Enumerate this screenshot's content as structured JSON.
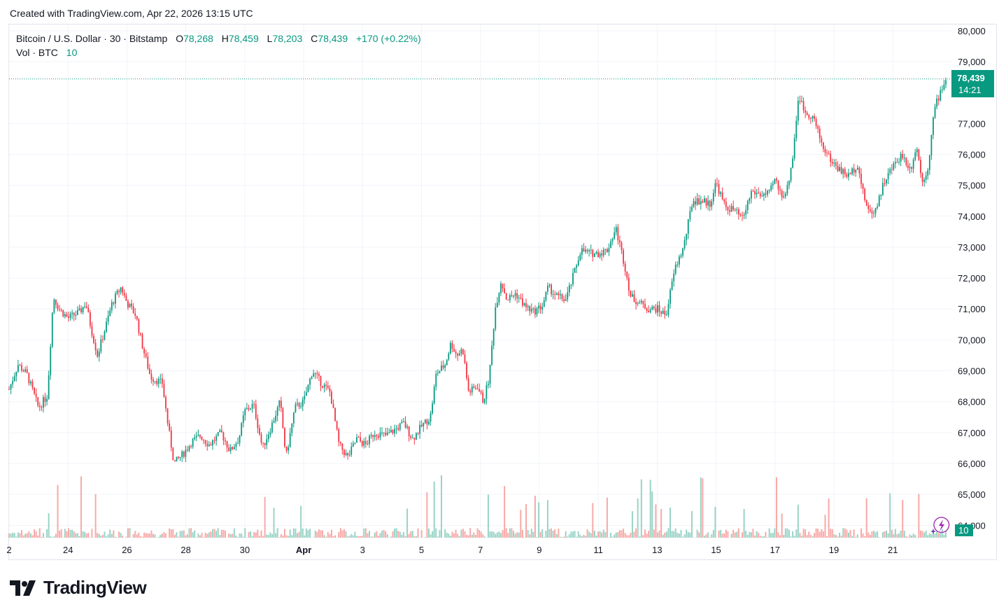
{
  "header": {
    "created_text": "Created with TradingView.com, Apr 22, 2026 13:15 UTC"
  },
  "legend": {
    "symbol": "Bitcoin / U.S. Dollar · 30 · Bitstamp",
    "o_label": "O",
    "o_value": "78,268",
    "h_label": "H",
    "h_value": "78,459",
    "l_label": "L",
    "l_value": "78,203",
    "c_label": "C",
    "c_value": "78,439",
    "change": "+170 (+0.22%)",
    "vol_label": "Vol · BTC",
    "vol_value": "10"
  },
  "price_badge": {
    "price": "78,439",
    "countdown": "14:21"
  },
  "volume_badge": {
    "value": "10"
  },
  "footer": {
    "logo_text": "TradingView"
  },
  "colors": {
    "up": "#089981",
    "down": "#f23645",
    "up_volume": "#9ad3c6",
    "down_volume": "#f7a9a7",
    "grid": "#f0f3fa",
    "axis_text": "#131722"
  },
  "chart_data": {
    "type": "candlestick",
    "title": "Bitcoin / U.S. Dollar · 30 · Bitstamp",
    "interval": "30",
    "y_ticks": [
      "80,000",
      "79,000",
      "77,000",
      "76,000",
      "75,000",
      "74,000",
      "73,000",
      "72,000",
      "71,000",
      "70,000",
      "69,000",
      "68,000",
      "67,000",
      "66,000",
      "65,000",
      "64,000"
    ],
    "ylim": [
      63600,
      80200
    ],
    "x_ticks": [
      {
        "label": "2",
        "day": 22
      },
      {
        "label": "24",
        "day": 24
      },
      {
        "label": "26",
        "day": 26
      },
      {
        "label": "28",
        "day": 28
      },
      {
        "label": "30",
        "day": 30
      },
      {
        "label": "Apr",
        "day": 32,
        "bold": true
      },
      {
        "label": "3",
        "day": 34
      },
      {
        "label": "5",
        "day": 36
      },
      {
        "label": "7",
        "day": 38
      },
      {
        "label": "9",
        "day": 40
      },
      {
        "label": "11",
        "day": 42
      },
      {
        "label": "13",
        "day": 44
      },
      {
        "label": "15",
        "day": 46
      },
      {
        "label": "17",
        "day": 48
      },
      {
        "label": "19",
        "day": 50
      },
      {
        "label": "21",
        "day": 52
      }
    ],
    "x_domain_days": [
      22,
      53.8
    ],
    "last_price": 78439,
    "price_path": [
      [
        22.0,
        68400
      ],
      [
        22.3,
        69200
      ],
      [
        22.6,
        68900
      ],
      [
        23.0,
        67800
      ],
      [
        23.3,
        68200
      ],
      [
        23.5,
        71400
      ],
      [
        23.7,
        71000
      ],
      [
        24.0,
        70700
      ],
      [
        24.4,
        70900
      ],
      [
        24.6,
        71200
      ],
      [
        24.8,
        70300
      ],
      [
        25.0,
        69500
      ],
      [
        25.3,
        70500
      ],
      [
        25.5,
        71200
      ],
      [
        25.8,
        71700
      ],
      [
        26.0,
        71200
      ],
      [
        26.3,
        70800
      ],
      [
        26.5,
        69900
      ],
      [
        26.8,
        68800
      ],
      [
        27.2,
        68600
      ],
      [
        27.4,
        67200
      ],
      [
        27.6,
        66000
      ],
      [
        27.9,
        66300
      ],
      [
        28.2,
        66700
      ],
      [
        28.5,
        66900
      ],
      [
        28.8,
        66600
      ],
      [
        29.2,
        67000
      ],
      [
        29.5,
        66400
      ],
      [
        29.8,
        66800
      ],
      [
        30.0,
        67700
      ],
      [
        30.3,
        67900
      ],
      [
        30.6,
        66500
      ],
      [
        30.9,
        67200
      ],
      [
        31.2,
        68000
      ],
      [
        31.4,
        66200
      ],
      [
        31.7,
        67800
      ],
      [
        32.0,
        68000
      ],
      [
        32.3,
        69000
      ],
      [
        32.6,
        68600
      ],
      [
        32.9,
        68300
      ],
      [
        33.2,
        66600
      ],
      [
        33.5,
        66200
      ],
      [
        33.8,
        66800
      ],
      [
        34.1,
        66600
      ],
      [
        34.4,
        67000
      ],
      [
        34.8,
        66900
      ],
      [
        35.1,
        67100
      ],
      [
        35.4,
        67300
      ],
      [
        35.7,
        66800
      ],
      [
        36.0,
        67200
      ],
      [
        36.3,
        67500
      ],
      [
        36.5,
        68900
      ],
      [
        36.8,
        69200
      ],
      [
        37.0,
        69900
      ],
      [
        37.2,
        69500
      ],
      [
        37.4,
        69700
      ],
      [
        37.6,
        68300
      ],
      [
        37.9,
        68500
      ],
      [
        38.1,
        68000
      ],
      [
        38.3,
        68800
      ],
      [
        38.5,
        71000
      ],
      [
        38.7,
        71900
      ],
      [
        38.9,
        71300
      ],
      [
        39.2,
        71500
      ],
      [
        39.5,
        71100
      ],
      [
        39.8,
        70900
      ],
      [
        40.1,
        71100
      ],
      [
        40.3,
        71700
      ],
      [
        40.6,
        71400
      ],
      [
        40.9,
        71300
      ],
      [
        41.1,
        71900
      ],
      [
        41.4,
        72900
      ],
      [
        41.7,
        72800
      ],
      [
        42.0,
        72800
      ],
      [
        42.3,
        72900
      ],
      [
        42.6,
        73600
      ],
      [
        42.9,
        72400
      ],
      [
        43.1,
        71400
      ],
      [
        43.4,
        71200
      ],
      [
        43.7,
        71000
      ],
      [
        44.0,
        71000
      ],
      [
        44.3,
        70800
      ],
      [
        44.6,
        72300
      ],
      [
        44.9,
        73000
      ],
      [
        45.2,
        74500
      ],
      [
        45.5,
        74500
      ],
      [
        45.8,
        74400
      ],
      [
        46.0,
        75100
      ],
      [
        46.3,
        74300
      ],
      [
        46.6,
        74200
      ],
      [
        46.9,
        73900
      ],
      [
        47.2,
        74800
      ],
      [
        47.5,
        74700
      ],
      [
        47.8,
        74700
      ],
      [
        48.0,
        75200
      ],
      [
        48.2,
        74700
      ],
      [
        48.4,
        74800
      ],
      [
        48.6,
        75900
      ],
      [
        48.8,
        77900
      ],
      [
        49.0,
        77400
      ],
      [
        49.3,
        77200
      ],
      [
        49.6,
        76300
      ],
      [
        49.9,
        75800
      ],
      [
        50.2,
        75500
      ],
      [
        50.5,
        75300
      ],
      [
        50.8,
        75700
      ],
      [
        51.0,
        74700
      ],
      [
        51.2,
        74100
      ],
      [
        51.4,
        74200
      ],
      [
        51.7,
        75100
      ],
      [
        52.0,
        75600
      ],
      [
        52.3,
        76000
      ],
      [
        52.6,
        75500
      ],
      [
        52.8,
        76300
      ],
      [
        53.0,
        75100
      ],
      [
        53.2,
        75600
      ],
      [
        53.4,
        77400
      ],
      [
        53.6,
        78000
      ],
      [
        53.8,
        78439
      ]
    ]
  }
}
